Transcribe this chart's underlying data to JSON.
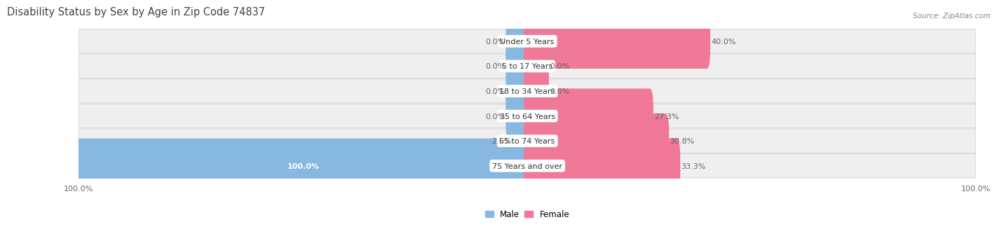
{
  "title": "Disability Status by Sex by Age in Zip Code 74837",
  "source": "Source: ZipAtlas.com",
  "categories": [
    "Under 5 Years",
    "5 to 17 Years",
    "18 to 34 Years",
    "35 to 64 Years",
    "65 to 74 Years",
    "75 Years and over"
  ],
  "male_values": [
    0.0,
    0.0,
    0.0,
    0.0,
    2.5,
    100.0
  ],
  "female_values": [
    40.0,
    0.0,
    0.0,
    27.3,
    30.8,
    33.3
  ],
  "male_color": "#88b8e0",
  "female_color": "#f07898",
  "row_bg_color": "#efefef",
  "row_edge_color": "#d8d8d8",
  "max_value": 100.0,
  "title_fontsize": 10.5,
  "label_fontsize": 8,
  "category_fontsize": 8,
  "axis_label_fontsize": 8,
  "legend_fontsize": 8.5,
  "bar_height": 0.6,
  "stub_value": 4.0
}
